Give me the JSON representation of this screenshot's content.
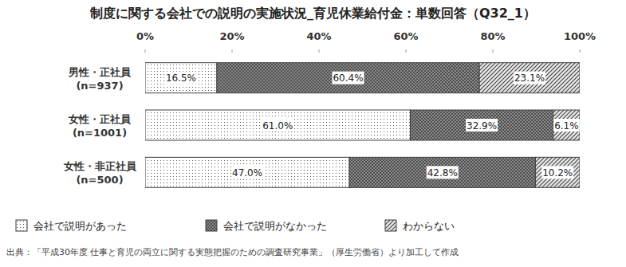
{
  "chart_data": {
    "type": "bar",
    "orientation": "horizontal",
    "stacked": true,
    "data_labels": true,
    "grid": false,
    "legend": "bottom",
    "title": "制度に関する会社での説明の実施状況_育児休業給付金：単数回答（Q32_1）",
    "source": "出典：「平成30年度 仕事と育児の両立に関する実態把握のための調査研究事業」（厚生労働省）より加工して作成",
    "categories": [
      "男性・正社員\n(n=937)",
      "女性・正社員\n(n=1001)",
      "女性・非正社員\n(n=500)"
    ],
    "xlim": [
      0,
      100
    ],
    "xticks": [
      {
        "value": 0,
        "label": "0%"
      },
      {
        "value": 20,
        "label": "20%"
      },
      {
        "value": 40,
        "label": "40%"
      },
      {
        "value": 60,
        "label": "60%"
      },
      {
        "value": 80,
        "label": "80%"
      },
      {
        "value": 100,
        "label": "100%"
      }
    ],
    "series": [
      {
        "name": "会社で説明があった",
        "color": "#ffffff",
        "values": [
          16.5,
          61.0,
          47.0
        ],
        "value_labels": [
          "16.5%",
          "61.0%",
          "47.0%"
        ]
      },
      {
        "name": "会社で説明がなかった",
        "color": "#8c8c8c",
        "values": [
          60.4,
          32.9,
          42.8
        ],
        "value_labels": [
          "60.4%",
          "32.9%",
          "42.8%"
        ]
      },
      {
        "name": "わからない",
        "color": "#e6e6e6",
        "values": [
          23.1,
          6.1,
          10.2
        ],
        "value_labels": [
          "23.1%",
          "6.1%",
          "10.2%"
        ]
      }
    ]
  }
}
